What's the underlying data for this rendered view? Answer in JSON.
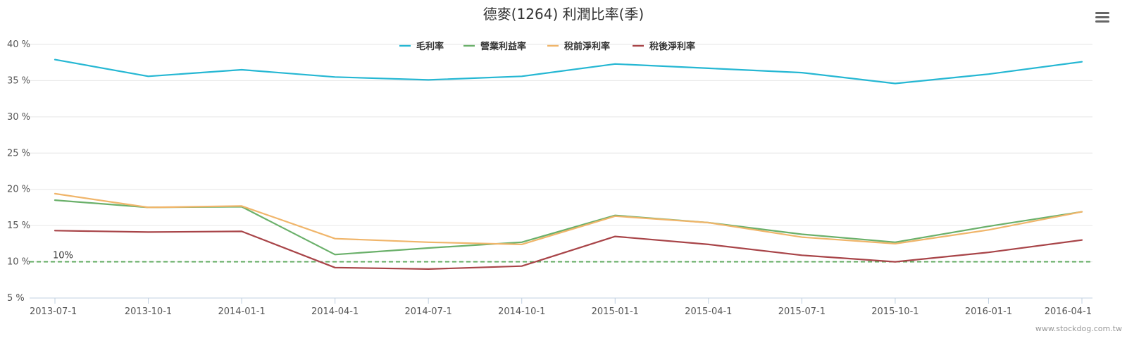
{
  "chart_data": {
    "type": "line",
    "title": "德麥(1264) 利潤比率(季)",
    "xlabel": "",
    "ylabel": "",
    "ylim": [
      5,
      40
    ],
    "y_ticks": [
      5,
      10,
      15,
      20,
      25,
      30,
      35,
      40
    ],
    "y_tick_labels": [
      "5 %",
      "10 %",
      "15 %",
      "20 %",
      "25 %",
      "30 %",
      "35 %",
      "40 %"
    ],
    "grid": true,
    "legend_position": "top-center",
    "categories": [
      "2013-07-1",
      "2013-10-1",
      "2014-01-1",
      "2014-04-1",
      "2014-07-1",
      "2014-10-1",
      "2015-01-1",
      "2015-04-1",
      "2015-07-1",
      "2015-10-1",
      "2016-01-1",
      "2016-04-1"
    ],
    "series": [
      {
        "name": "毛利率",
        "color": "#25b7d3",
        "values": [
          37.9,
          35.6,
          36.5,
          35.5,
          35.1,
          35.6,
          37.3,
          36.7,
          36.1,
          34.6,
          35.9,
          37.6
        ]
      },
      {
        "name": "營業利益率",
        "color": "#6ab06a",
        "values": [
          18.5,
          17.5,
          17.6,
          11.0,
          11.9,
          12.7,
          16.4,
          15.4,
          13.8,
          12.7,
          14.9,
          16.9
        ]
      },
      {
        "name": "稅前淨利率",
        "color": "#f0b56a",
        "values": [
          19.4,
          17.5,
          17.7,
          13.2,
          12.7,
          12.4,
          16.3,
          15.4,
          13.4,
          12.5,
          14.4,
          16.9
        ]
      },
      {
        "name": "稅後淨利率",
        "color": "#a84448",
        "values": [
          14.3,
          14.1,
          14.2,
          9.2,
          9.0,
          9.4,
          13.5,
          12.4,
          10.9,
          10.0,
          11.3,
          13.0
        ]
      }
    ],
    "reference_line": {
      "value": 10,
      "label": "10%",
      "color": "#5aa85a",
      "style": "dashed"
    }
  },
  "menu": {
    "icon": "hamburger-menu-icon"
  },
  "credit": "www.stockdog.com.tw"
}
